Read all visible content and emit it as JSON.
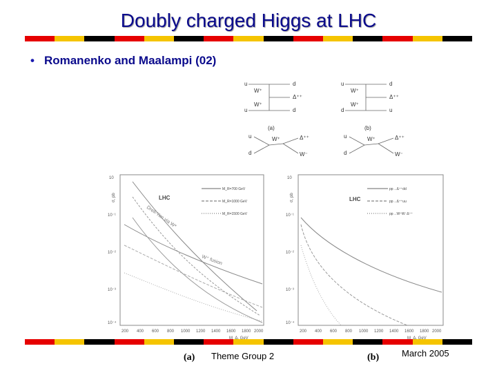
{
  "title": "Doubly charged Higgs at LHC",
  "bullet": "Romanenko and Maalampi (02)",
  "footer": {
    "center": "Theme Group 2",
    "right": "March 2005"
  },
  "diagrams": {
    "top_labels": {
      "u": "u",
      "d": "d",
      "W": "W⁺",
      "delta": "Δ⁺⁺",
      "ubar": "u",
      "dbar": "d"
    },
    "caption_a": "(a)",
    "caption_b": "(b)",
    "lower_left": {
      "q": "u",
      "qbar": "d",
      "W1": "W⁺",
      "W2": "W⁻",
      "D": "Δ⁺⁺"
    },
    "lower_right": {
      "q": "u",
      "qbar": "d",
      "W1": "W⁺",
      "W2": "W⁻",
      "D": "Δ⁺⁺"
    }
  },
  "plot_a": {
    "label": "(a)",
    "lhc": "LHC",
    "y_ticks": [
      "10",
      "10⁻¹",
      "10⁻²",
      "10⁻³",
      "10⁻⁴"
    ],
    "x_ticks": [
      "200",
      "400",
      "600",
      "800",
      "1000",
      "1200",
      "1400",
      "1600",
      "1800",
      "2000"
    ],
    "legend": [
      "M_R=700 GeV",
      "M_R=1000 GeV",
      "M_R=1500 GeV"
    ],
    "ann_drellyan": "Drell-Yan via W*",
    "ann_fusion": "W⁺ fusion",
    "xlabel": "M_Δ, GeV",
    "ylabel": "σ, pb"
  },
  "plot_b": {
    "label": "(b)",
    "lhc": "LHC",
    "y_ticks": [
      "10",
      "10⁻¹",
      "10⁻²",
      "10⁻³",
      "10⁻⁴"
    ],
    "x_ticks": [
      "200",
      "400",
      "600",
      "800",
      "1000",
      "1200",
      "1400",
      "1600",
      "1800",
      "2000"
    ],
    "legend": [
      "pp→Δ⁺⁺dd",
      "pp→Δ⁺⁺uu",
      "pp→W⁺W⁻Δ⁺⁺"
    ],
    "xlabel": "M_Δ, GeV",
    "ylabel": "σ, pb"
  },
  "colors": {
    "title": "#0a0a8c",
    "stripe_red": "#e60000",
    "stripe_yellow": "#f5c400",
    "stripe_black": "#000000"
  }
}
